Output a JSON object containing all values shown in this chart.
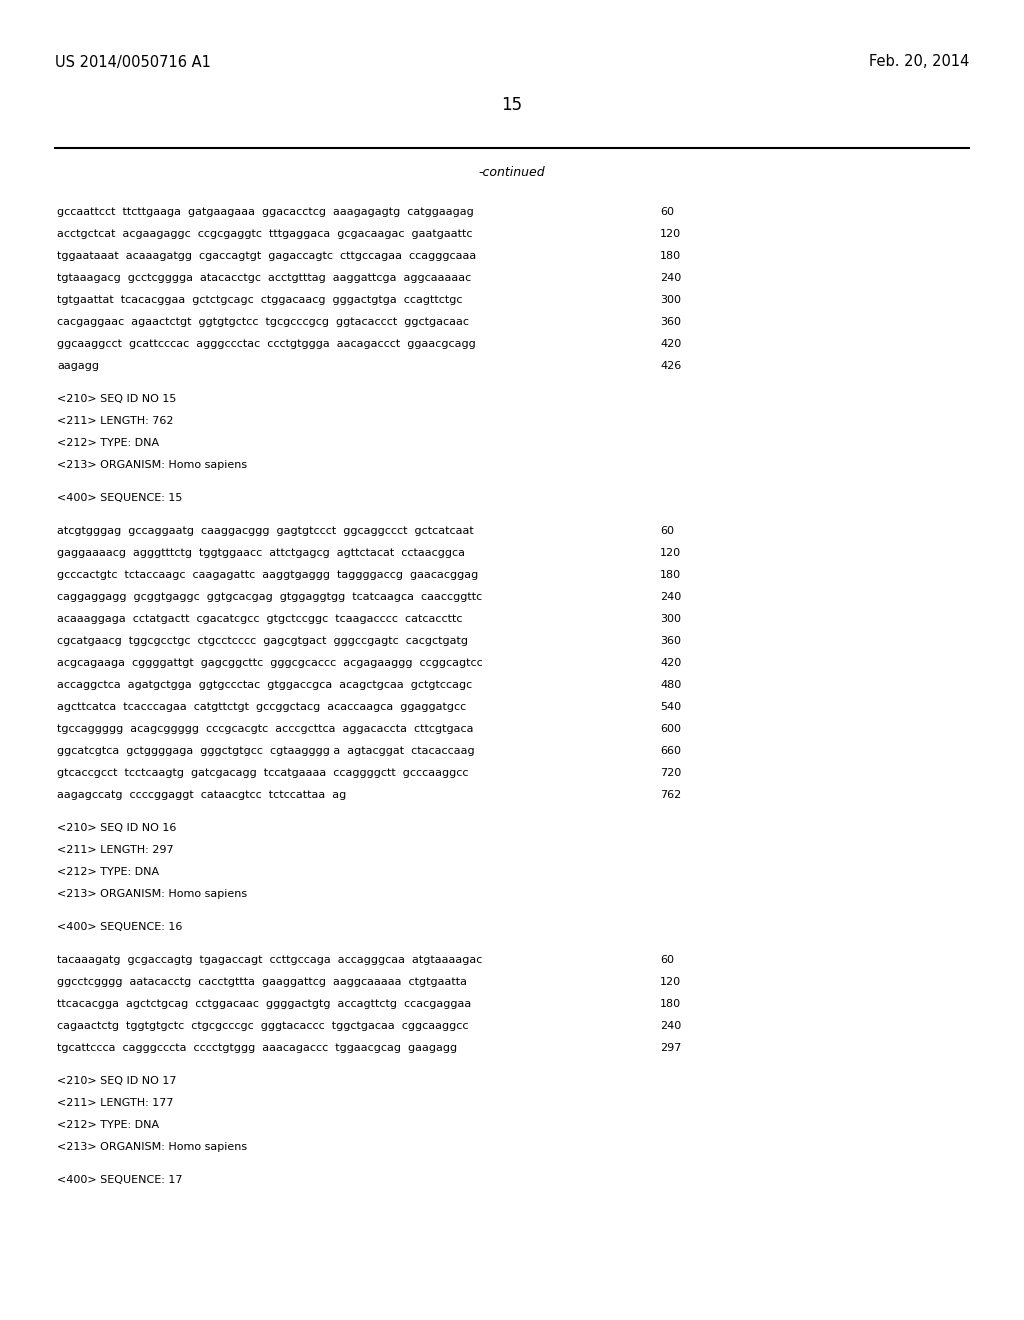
{
  "bg_color": "#ffffff",
  "header_left": "US 2014/0050716 A1",
  "header_right": "Feb. 20, 2014",
  "page_number": "15",
  "continued_label": "-continued",
  "lines": [
    {
      "text": "gccaattcct  ttcttgaaga  gatgaagaaa  ggacacctcg  aaagagagtg  catggaagag",
      "num": "60",
      "type": "seq"
    },
    {
      "text": "acctgctcat  acgaagaggc  ccgcgaggtc  tttgaggaca  gcgacaagac  gaatgaattc",
      "num": "120",
      "type": "seq"
    },
    {
      "text": "tggaataaat  acaaagatgg  cgaccagtgt  gagaccagtc  cttgccagaa  ccagggcaaa",
      "num": "180",
      "type": "seq"
    },
    {
      "text": "tgtaaagacg  gcctcgggga  atacacctgc  acctgtttag  aaggattcga  aggcaaaaac",
      "num": "240",
      "type": "seq"
    },
    {
      "text": "tgtgaattat  tcacacggaa  gctctgcagc  ctggacaacg  gggactgtga  ccagttctgc",
      "num": "300",
      "type": "seq"
    },
    {
      "text": "cacgaggaac  agaactctgt  ggtgtgctcc  tgcgcccgcg  ggtacaccct  ggctgacaac",
      "num": "360",
      "type": "seq"
    },
    {
      "text": "ggcaaggcct  gcattcccac  agggccctac  ccctgtggga  aacagaccct  ggaacgcagg",
      "num": "420",
      "type": "seq"
    },
    {
      "text": "aagagg",
      "num": "426",
      "type": "seq"
    },
    {
      "text": "",
      "num": "",
      "type": "blank"
    },
    {
      "text": "<210> SEQ ID NO 15",
      "num": "",
      "type": "meta"
    },
    {
      "text": "<211> LENGTH: 762",
      "num": "",
      "type": "meta"
    },
    {
      "text": "<212> TYPE: DNA",
      "num": "",
      "type": "meta"
    },
    {
      "text": "<213> ORGANISM: Homo sapiens",
      "num": "",
      "type": "meta"
    },
    {
      "text": "",
      "num": "",
      "type": "blank"
    },
    {
      "text": "<400> SEQUENCE: 15",
      "num": "",
      "type": "meta"
    },
    {
      "text": "",
      "num": "",
      "type": "blank"
    },
    {
      "text": "atcgtgggag  gccaggaatg  caaggacggg  gagtgtccct  ggcaggccct  gctcatcaat",
      "num": "60",
      "type": "seq"
    },
    {
      "text": "gaggaaaacg  agggtttctg  tggtggaacc  attctgagcg  agttctacat  cctaacggca",
      "num": "120",
      "type": "seq"
    },
    {
      "text": "gcccactgtc  tctaccaagc  caagagattc  aaggtgaggg  taggggaccg  gaacacggag",
      "num": "180",
      "type": "seq"
    },
    {
      "text": "caggaggagg  gcggtgaggc  ggtgcacgag  gtggaggtgg  tcatcaagca  caaccggttc",
      "num": "240",
      "type": "seq"
    },
    {
      "text": "acaaaggaga  cctatgactt  cgacatcgcc  gtgctccggc  tcaagacccc  catcaccttc",
      "num": "300",
      "type": "seq"
    },
    {
      "text": "cgcatgaacg  tggcgcctgc  ctgcctcccc  gagcgtgact  gggccgagtc  cacgctgatg",
      "num": "360",
      "type": "seq"
    },
    {
      "text": "acgcagaaga  cggggattgt  gagcggcttc  gggcgcaccc  acgagaaggg  ccggcagtcc",
      "num": "420",
      "type": "seq"
    },
    {
      "text": "accaggctca  agatgctgga  ggtgccctac  gtggaccgca  acagctgcaa  gctgtccagc",
      "num": "480",
      "type": "seq"
    },
    {
      "text": "agcttcatca  tcacccagaa  catgttctgt  gccggctacg  acaccaagca  ggaggatgcc",
      "num": "540",
      "type": "seq"
    },
    {
      "text": "tgccaggggg  acagcggggg  cccgcacgtc  acccgcttca  aggacaccta  cttcgtgaca",
      "num": "600",
      "type": "seq"
    },
    {
      "text": "ggcatcgtca  gctggggaga  gggctgtgcc  cgtaagggg a  agtacggat  ctacaccaag",
      "num": "660",
      "type": "seq"
    },
    {
      "text": "gtcaccgcct  tcctcaagtg  gatcgacagg  tccatgaaaa  ccaggggctt  gcccaaggcc",
      "num": "720",
      "type": "seq"
    },
    {
      "text": "aagagccatg  ccccggaggt  cataacgtcc  tctccattaa  ag",
      "num": "762",
      "type": "seq"
    },
    {
      "text": "",
      "num": "",
      "type": "blank"
    },
    {
      "text": "<210> SEQ ID NO 16",
      "num": "",
      "type": "meta"
    },
    {
      "text": "<211> LENGTH: 297",
      "num": "",
      "type": "meta"
    },
    {
      "text": "<212> TYPE: DNA",
      "num": "",
      "type": "meta"
    },
    {
      "text": "<213> ORGANISM: Homo sapiens",
      "num": "",
      "type": "meta"
    },
    {
      "text": "",
      "num": "",
      "type": "blank"
    },
    {
      "text": "<400> SEQUENCE: 16",
      "num": "",
      "type": "meta"
    },
    {
      "text": "",
      "num": "",
      "type": "blank"
    },
    {
      "text": "tacaaagatg  gcgaccagtg  tgagaccagt  ccttgccaga  accagggcaa  atgtaaaagac",
      "num": "60",
      "type": "seq"
    },
    {
      "text": "ggcctcgggg  aatacacctg  cacctgttta  gaaggattcg  aaggcaaaaa  ctgtgaatta",
      "num": "120",
      "type": "seq"
    },
    {
      "text": "ttcacacgga  agctctgcag  cctggacaac  ggggactgtg  accagttctg  ccacgaggaa",
      "num": "180",
      "type": "seq"
    },
    {
      "text": "cagaactctg  tggtgtgctc  ctgcgcccgc  gggtacaccc  tggctgacaa  cggcaaggcc",
      "num": "240",
      "type": "seq"
    },
    {
      "text": "tgcattccca  cagggcccta  cccctgtggg  aaacagaccc  tggaacgcag  gaagagg",
      "num": "297",
      "type": "seq"
    },
    {
      "text": "",
      "num": "",
      "type": "blank"
    },
    {
      "text": "<210> SEQ ID NO 17",
      "num": "",
      "type": "meta"
    },
    {
      "text": "<211> LENGTH: 177",
      "num": "",
      "type": "meta"
    },
    {
      "text": "<212> TYPE: DNA",
      "num": "",
      "type": "meta"
    },
    {
      "text": "<213> ORGANISM: Homo sapiens",
      "num": "",
      "type": "meta"
    },
    {
      "text": "",
      "num": "",
      "type": "blank"
    },
    {
      "text": "<400> SEQUENCE: 17",
      "num": "",
      "type": "meta"
    }
  ]
}
